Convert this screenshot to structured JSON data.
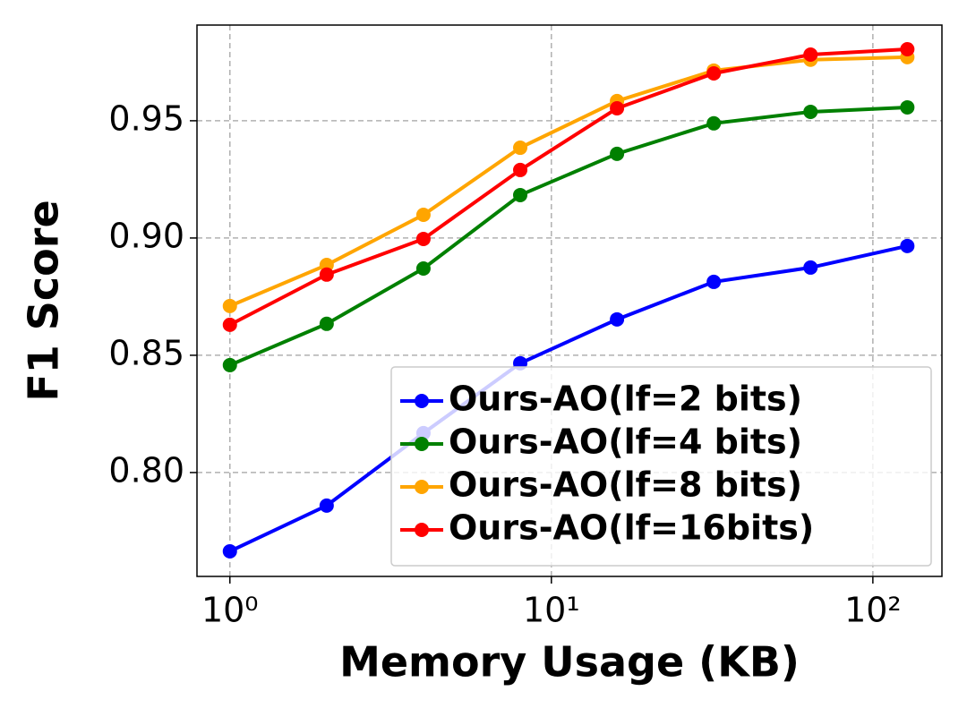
{
  "chart_data": {
    "type": "line",
    "xlabel": "Memory Usage (KB)",
    "ylabel": "F1 Score",
    "x": [
      1,
      2,
      4,
      8,
      16,
      32,
      64,
      128
    ],
    "xscale": "log",
    "grid": true,
    "legend": "lower right",
    "xlim": [
      0.79,
      164
    ],
    "ylim": [
      0.7557,
      0.9908
    ],
    "xticks": [
      {
        "value": 1,
        "label": "10⁰"
      },
      {
        "value": 10,
        "label": "10¹"
      },
      {
        "value": 100,
        "label": "10²"
      }
    ],
    "yticks": [
      {
        "value": 0.8,
        "label": "0.80"
      },
      0.85,
      {
        "value": 0.9,
        "label": "0.90"
      },
      0.95
    ],
    "series": [
      {
        "name": "Ours-AO(lf=2 bits)",
        "color": "#0000ff",
        "values": [
          0.7664,
          0.7859,
          0.8168,
          0.8466,
          0.8653,
          0.8813,
          0.8874,
          0.8966
        ]
      },
      {
        "name": "Ours-AO(lf=4 bits)",
        "color": "#008000",
        "values": [
          0.8458,
          0.8634,
          0.887,
          0.9183,
          0.9359,
          0.9489,
          0.9538,
          0.9557
        ]
      },
      {
        "name": "Ours-AO(lf=8 bits)",
        "color": "#ffa500",
        "values": [
          0.871,
          0.8885,
          0.9099,
          0.9385,
          0.9584,
          0.9714,
          0.976,
          0.9771
        ]
      },
      {
        "name": "Ours-AO(lf=16bits)",
        "color": "#ff0000",
        "values": [
          0.863,
          0.8844,
          0.8996,
          0.929,
          0.9553,
          0.9702,
          0.9782,
          0.9805
        ]
      }
    ]
  }
}
